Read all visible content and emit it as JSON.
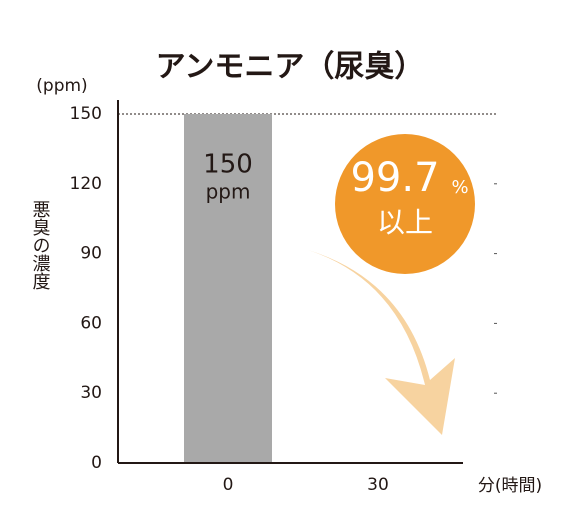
{
  "chart_data": {
    "type": "bar",
    "title": "アンモニア（尿臭）",
    "y_unit": "(ppm)",
    "y_label": "悪臭の濃度",
    "x_label": "分(時間)",
    "categories": [
      "0",
      "30"
    ],
    "values": [
      150,
      0
    ],
    "color": "#a9a9a9",
    "bar_label_unit": "ppm",
    "ylim": [
      0,
      150
    ],
    "yticks": [
      0,
      30,
      60,
      90,
      120,
      150
    ],
    "annotation": {
      "value": "99.7",
      "unit": "%",
      "text": "以上",
      "color": "#f0982a",
      "arrow_color": "#f7d3a0"
    }
  }
}
